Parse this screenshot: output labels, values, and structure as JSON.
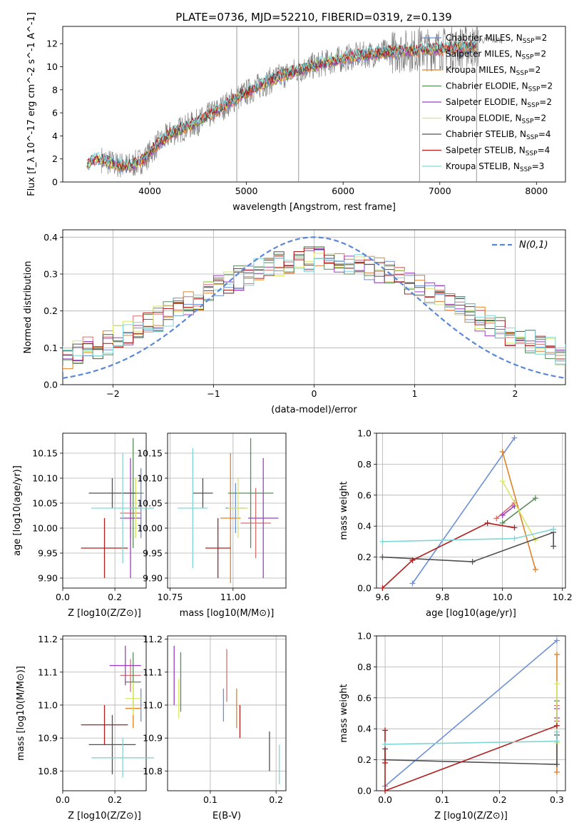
{
  "figure_title": "PLATE=0736, MJD=52210, FIBERID=0319, z=0.139",
  "colors": {
    "Chabrier MILES": "#6b8fd8",
    "Salpeter MILES": "#d67070",
    "Kroupa MILES": "#e0822a",
    "Chabrier ELODIE": "#5a8a5a",
    "Salpeter ELODIE": "#9e3fbf",
    "Kroupa ELODIE": "#d8e66a",
    "Chabrier STELIB": "#505050",
    "Salpeter STELIB": "#b01e1e",
    "Kroupa STELIB": "#7fd6d6",
    "normal": "#5b87d6"
  },
  "legend_labels": [
    "Chabrier MILES, N$_{SSP}$=2",
    "Salpeter MILES, N$_{SSP}$=2",
    "Kroupa MILES, N$_{SSP}$=2",
    "Chabrier ELODIE, N$_{SSP}$=2",
    "Salpeter ELODIE, N$_{SSP}$=2",
    "Kroupa ELODIE, N$_{SSP}$=2",
    "Chabrier STELIB, N$_{SSP}$=4",
    "Salpeter STELIB, N$_{SSP}$=4",
    "Kroupa STELIB, N$_{SSP}$=3"
  ],
  "chart_data": [
    {
      "id": "spectrum",
      "type": "line",
      "xlabel": "wavelength [Angstrom, rest frame]",
      "ylabel": "Flux [f_λ 10^-17 erg cm^-2 s^-1 A^-1]",
      "xlim": [
        3100,
        8300
      ],
      "ylim": [
        0,
        13.5
      ],
      "xticks": [
        4000,
        5000,
        6000,
        7000,
        8000
      ],
      "yticks": [
        0,
        2,
        4,
        6,
        8,
        10,
        12
      ],
      "continuum": {
        "x": [
          3350,
          3450,
          3550,
          3650,
          3800,
          3950,
          4050,
          4200,
          4300,
          4500,
          4700,
          4900,
          5100,
          5300,
          5500,
          5700,
          5900,
          6100,
          6300,
          6500,
          6700,
          6900,
          7100,
          7300,
          7400
        ],
        "y": [
          1.6,
          2.1,
          1.8,
          1.5,
          1.4,
          2.0,
          3.0,
          4.1,
          4.5,
          5.2,
          6.2,
          7.3,
          8.2,
          9.0,
          9.6,
          10.1,
          10.5,
          10.9,
          11.1,
          11.3,
          11.4,
          11.5,
          11.6,
          11.7,
          11.8
        ]
      }
    },
    {
      "id": "residuals",
      "type": "histogram",
      "xlabel": "(data-model)/error",
      "ylabel": "Normed distribution",
      "xlim": [
        -2.5,
        2.5
      ],
      "ylim": [
        0,
        0.42
      ],
      "xticks": [
        -2,
        -1,
        0,
        1,
        2
      ],
      "yticks": [
        0.0,
        0.1,
        0.2,
        0.3,
        0.4
      ],
      "legend": "N(0,1)"
    },
    {
      "id": "age_vs_Z",
      "type": "errorbar",
      "xlabel": "Z [log10(Z/Z⊙)]",
      "ylabel": "age [log10(age/yr)]",
      "xlim": [
        0.0,
        0.32
      ],
      "ylim": [
        9.88,
        10.19
      ],
      "xticks": [
        0.0,
        0.2
      ],
      "yticks": [
        9.9,
        9.95,
        10.0,
        10.05,
        10.1,
        10.15
      ],
      "points": [
        {
          "model": "Chabrier MILES",
          "x": 0.3,
          "y": 10.05,
          "xerr": 0.0,
          "yerr": 0.07
        },
        {
          "model": "Salpeter MILES",
          "x": 0.26,
          "y": 10.03,
          "xerr": 0.04,
          "yerr": 0.05
        },
        {
          "model": "Kroupa MILES",
          "x": 0.28,
          "y": 10.04,
          "xerr": 0.02,
          "yerr": 0.06
        },
        {
          "model": "Chabrier ELODIE",
          "x": 0.27,
          "y": 10.07,
          "xerr": 0.04,
          "yerr": 0.11
        },
        {
          "model": "Salpeter ELODIE",
          "x": 0.26,
          "y": 10.02,
          "xerr": 0.04,
          "yerr": 0.12
        },
        {
          "model": "Kroupa ELODIE",
          "x": 0.28,
          "y": 10.04,
          "xerr": 0.02,
          "yerr": 0.06
        },
        {
          "model": "Chabrier STELIB",
          "x": 0.19,
          "y": 10.07,
          "xerr": 0.09,
          "yerr": 0.03
        },
        {
          "model": "Salpeter STELIB",
          "x": 0.16,
          "y": 9.96,
          "xerr": 0.09,
          "yerr": 0.06
        },
        {
          "model": "Kroupa STELIB",
          "x": 0.23,
          "y": 10.04,
          "xerr": 0.12,
          "yerr": 0.11
        }
      ]
    },
    {
      "id": "age_vs_mass",
      "type": "errorbar",
      "xlabel": "mass [log10(M/M⊙)]",
      "ylabel": "",
      "xlim": [
        10.74,
        11.21
      ],
      "ylim": [
        9.88,
        10.19
      ],
      "xticks": [
        10.75,
        11.0
      ],
      "yticks": [
        9.9,
        9.95,
        10.0,
        10.05,
        10.1,
        10.15
      ],
      "points": [
        {
          "model": "Chabrier MILES",
          "x": 11.01,
          "y": 10.04,
          "xerr": 0.04,
          "yerr": 0.05
        },
        {
          "model": "Salpeter MILES",
          "x": 11.09,
          "y": 10.01,
          "xerr": 0.06,
          "yerr": 0.07
        },
        {
          "model": "Kroupa MILES",
          "x": 10.99,
          "y": 10.02,
          "xerr": 0.04,
          "yerr": 0.13
        },
        {
          "model": "Chabrier ELODIE",
          "x": 11.07,
          "y": 10.07,
          "xerr": 0.09,
          "yerr": 0.11
        },
        {
          "model": "Salpeter ELODIE",
          "x": 11.12,
          "y": 10.02,
          "xerr": 0.06,
          "yerr": 0.12
        },
        {
          "model": "Kroupa ELODIE",
          "x": 11.02,
          "y": 10.04,
          "xerr": 0.04,
          "yerr": 0.06
        },
        {
          "model": "Chabrier STELIB",
          "x": 10.88,
          "y": 10.07,
          "xerr": 0.04,
          "yerr": 0.03
        },
        {
          "model": "Salpeter STELIB",
          "x": 10.94,
          "y": 9.96,
          "xerr": 0.05,
          "yerr": 0.06
        },
        {
          "model": "Kroupa STELIB",
          "x": 10.84,
          "y": 10.04,
          "xerr": 0.06,
          "yerr": 0.12
        }
      ]
    },
    {
      "id": "mass_vs_Z",
      "type": "errorbar",
      "xlabel": "Z [log10(Z/Z⊙)]",
      "ylabel": "mass [log10(M/M⊙)]",
      "xlim": [
        0.0,
        0.32
      ],
      "ylim": [
        10.74,
        11.21
      ],
      "xticks": [
        0.0,
        0.2
      ],
      "yticks": [
        10.8,
        10.9,
        11.0,
        11.1,
        11.2
      ],
      "points": [
        {
          "model": "Chabrier MILES",
          "x": 0.3,
          "y": 11.0,
          "xerr": 0.0,
          "yerr": 0.05
        },
        {
          "model": "Salpeter MILES",
          "x": 0.26,
          "y": 11.09,
          "xerr": 0.04,
          "yerr": 0.05
        },
        {
          "model": "Kroupa MILES",
          "x": 0.27,
          "y": 10.99,
          "xerr": 0.03,
          "yerr": 0.06
        },
        {
          "model": "Chabrier ELODIE",
          "x": 0.27,
          "y": 11.07,
          "xerr": 0.03,
          "yerr": 0.09
        },
        {
          "model": "Salpeter ELODIE",
          "x": 0.24,
          "y": 11.12,
          "xerr": 0.06,
          "yerr": 0.06
        },
        {
          "model": "Kroupa ELODIE",
          "x": 0.27,
          "y": 11.02,
          "xerr": 0.03,
          "yerr": 0.05
        },
        {
          "model": "Chabrier STELIB",
          "x": 0.19,
          "y": 10.88,
          "xerr": 0.09,
          "yerr": 0.09
        },
        {
          "model": "Salpeter STELIB",
          "x": 0.16,
          "y": 10.94,
          "xerr": 0.09,
          "yerr": 0.06
        },
        {
          "model": "Kroupa STELIB",
          "x": 0.23,
          "y": 10.84,
          "xerr": 0.12,
          "yerr": 0.06
        }
      ]
    },
    {
      "id": "mass_vs_EBV",
      "type": "errorbar",
      "xlabel": "E(B-V)",
      "ylabel": "",
      "xlim": [
        0.035,
        0.215
      ],
      "ylim": [
        10.74,
        11.21
      ],
      "xticks": [
        0.1,
        0.2
      ],
      "yticks": [
        10.8,
        10.9,
        11.0,
        11.1,
        11.2
      ],
      "points": [
        {
          "model": "Chabrier MILES",
          "x": 0.12,
          "y": 11.0,
          "xerr": 0.0,
          "yerr": 0.05
        },
        {
          "model": "Salpeter MILES",
          "x": 0.125,
          "y": 11.09,
          "xerr": 0.0,
          "yerr": 0.08
        },
        {
          "model": "Kroupa MILES",
          "x": 0.14,
          "y": 10.99,
          "xerr": 0.0,
          "yerr": 0.06
        },
        {
          "model": "Chabrier ELODIE",
          "x": 0.055,
          "y": 11.07,
          "xerr": 0.0,
          "yerr": 0.09
        },
        {
          "model": "Salpeter ELODIE",
          "x": 0.045,
          "y": 11.09,
          "xerr": 0.0,
          "yerr": 0.09
        },
        {
          "model": "Kroupa ELODIE",
          "x": 0.052,
          "y": 11.02,
          "xerr": 0.0,
          "yerr": 0.06
        },
        {
          "model": "Chabrier STELIB",
          "x": 0.19,
          "y": 10.86,
          "xerr": 0.0,
          "yerr": 0.06
        },
        {
          "model": "Salpeter STELIB",
          "x": 0.145,
          "y": 10.95,
          "xerr": 0.0,
          "yerr": 0.05
        },
        {
          "model": "Kroupa STELIB",
          "x": 0.205,
          "y": 10.82,
          "xerr": 0.0,
          "yerr": 0.06
        }
      ]
    },
    {
      "id": "weight_vs_age",
      "type": "line",
      "xlabel": "age [log10(age/yr)]",
      "ylabel": "mass weight",
      "xlim": [
        9.58,
        10.21
      ],
      "ylim": [
        0.0,
        1.0
      ],
      "xticks": [
        9.6,
        9.8,
        10.0,
        10.2
      ],
      "yticks": [
        0.0,
        0.2,
        0.4,
        0.6,
        0.8,
        1.0
      ],
      "series": [
        {
          "model": "Chabrier MILES",
          "x": [
            9.7,
            10.04
          ],
          "y": [
            0.03,
            0.97
          ]
        },
        {
          "model": "Salpeter MILES",
          "x": [
            9.98,
            10.04
          ],
          "y": [
            0.45,
            0.55
          ]
        },
        {
          "model": "Kroupa MILES",
          "x": [
            10.0,
            10.11
          ],
          "y": [
            0.88,
            0.12
          ]
        },
        {
          "model": "Chabrier ELODIE",
          "x": [
            10.0,
            10.11
          ],
          "y": [
            0.42,
            0.58
          ]
        },
        {
          "model": "Salpeter ELODIE",
          "x": [
            10.0,
            10.04
          ],
          "y": [
            0.47,
            0.53
          ]
        },
        {
          "model": "Kroupa ELODIE",
          "x": [
            10.0,
            10.11
          ],
          "y": [
            0.69,
            0.31
          ]
        },
        {
          "model": "Chabrier STELIB",
          "x": [
            9.6,
            9.9,
            10.17,
            10.17
          ],
          "y": [
            0.2,
            0.17,
            0.36,
            0.27
          ]
        },
        {
          "model": "Salpeter STELIB",
          "x": [
            9.6,
            9.7,
            9.95,
            10.04
          ],
          "y": [
            0.0,
            0.18,
            0.42,
            0.39
          ]
        },
        {
          "model": "Kroupa STELIB",
          "x": [
            9.6,
            10.04,
            10.17
          ],
          "y": [
            0.3,
            0.32,
            0.38
          ]
        }
      ]
    },
    {
      "id": "weight_vs_Z",
      "type": "line",
      "xlabel": "Z [log10(Z/Z⊙)]",
      "ylabel": "mass weight",
      "xlim": [
        -0.015,
        0.315
      ],
      "ylim": [
        0.0,
        1.0
      ],
      "xticks": [
        0.0,
        0.1,
        0.2,
        0.3
      ],
      "yticks": [
        0.0,
        0.2,
        0.4,
        0.6,
        0.8,
        1.0
      ],
      "series": [
        {
          "model": "Chabrier MILES",
          "x": [
            0.0,
            0.3
          ],
          "y": [
            0.03,
            0.97
          ]
        },
        {
          "model": "Salpeter MILES",
          "x": [
            0.3,
            0.3
          ],
          "y": [
            0.45,
            0.55
          ]
        },
        {
          "model": "Kroupa MILES",
          "x": [
            0.3,
            0.3
          ],
          "y": [
            0.88,
            0.12
          ]
        },
        {
          "model": "Chabrier ELODIE",
          "x": [
            0.3,
            0.3
          ],
          "y": [
            0.42,
            0.58
          ]
        },
        {
          "model": "Salpeter ELODIE",
          "x": [
            0.3,
            0.3
          ],
          "y": [
            0.47,
            0.53
          ]
        },
        {
          "model": "Kroupa ELODIE",
          "x": [
            0.3,
            0.3
          ],
          "y": [
            0.69,
            0.31
          ]
        },
        {
          "model": "Chabrier STELIB",
          "x": [
            0.0,
            0.0,
            0.3,
            0.3
          ],
          "y": [
            0.27,
            0.2,
            0.17,
            0.36
          ]
        },
        {
          "model": "Salpeter STELIB",
          "x": [
            0.0,
            0.0,
            0.0,
            0.3
          ],
          "y": [
            0.39,
            0.18,
            0.0,
            0.42
          ]
        },
        {
          "model": "Kroupa STELIB",
          "x": [
            0.0,
            0.3,
            0.3
          ],
          "y": [
            0.3,
            0.32,
            0.38
          ]
        }
      ]
    }
  ]
}
